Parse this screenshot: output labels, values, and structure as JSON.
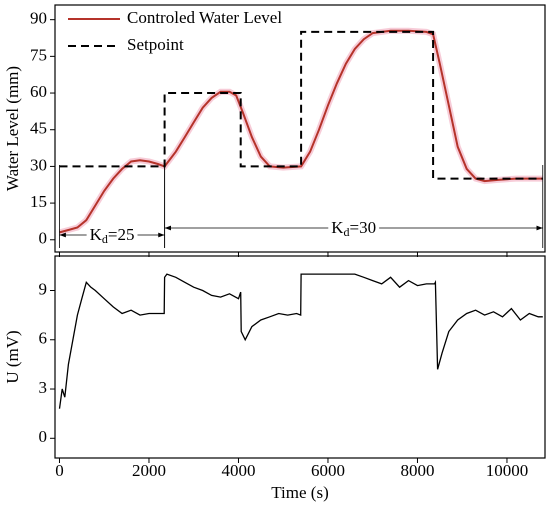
{
  "chart_data": [
    {
      "type": "line",
      "ylabel": "Water Level (mm)",
      "xlim": [
        -100,
        10850
      ],
      "ylim": [
        -5,
        96
      ],
      "xticks": [
        0,
        2000,
        4000,
        6000,
        8000,
        10000
      ],
      "yticks": [
        0,
        15,
        30,
        45,
        60,
        75,
        90
      ],
      "legend": "upper left",
      "series": [
        {
          "name": "Controled Water Level",
          "color": "#b5332a",
          "dash": false,
          "x": [
            0,
            200,
            400,
            600,
            800,
            1000,
            1200,
            1400,
            1600,
            1800,
            2000,
            2200,
            2350,
            2600,
            2800,
            3000,
            3200,
            3400,
            3600,
            3800,
            3950,
            4100,
            4300,
            4500,
            4700,
            5000,
            5400,
            5600,
            5800,
            6000,
            6200,
            6400,
            6600,
            6800,
            7000,
            7400,
            7800,
            8200,
            8350,
            8500,
            8700,
            8900,
            9100,
            9300,
            9500,
            9800,
            10200,
            10800
          ],
          "values": [
            3,
            4,
            5,
            8,
            14,
            20,
            25,
            29,
            32,
            32.5,
            32,
            31,
            30,
            36,
            42,
            48,
            54,
            58,
            60.5,
            60.5,
            59,
            52,
            42,
            34,
            30,
            29.5,
            30,
            36,
            45,
            55,
            64,
            72,
            78,
            82,
            84.5,
            85.5,
            85.5,
            85,
            84,
            72,
            55,
            38,
            29,
            25,
            24,
            24.5,
            25,
            25
          ]
        },
        {
          "name": "Setpoint",
          "color": "#000000",
          "dash": true,
          "x": [
            0,
            2350,
            2350,
            4050,
            4050,
            5400,
            5400,
            8350,
            8350,
            10800
          ],
          "values": [
            30,
            30,
            60,
            60,
            30,
            30,
            85,
            85,
            25,
            25
          ]
        }
      ],
      "annotations": [
        {
          "base": "K",
          "sub": "d",
          "tail": "=25",
          "span": [
            0,
            2350
          ]
        },
        {
          "base": "K",
          "sub": "d",
          "tail": "=30",
          "span": [
            2350,
            10800
          ]
        }
      ]
    },
    {
      "type": "line",
      "ylabel": "U (mV)",
      "xlabel": "Time (s)",
      "xlim": [
        -100,
        10850
      ],
      "ylim": [
        -1.2,
        11.1
      ],
      "xticks": [
        0,
        2000,
        4000,
        6000,
        8000,
        10000
      ],
      "yticks": [
        0,
        3,
        6,
        9
      ],
      "series": [
        {
          "color": "#000000",
          "dash": false,
          "x": [
            0,
            60,
            120,
            200,
            300,
            400,
            500,
            600,
            700,
            800,
            1000,
            1200,
            1400,
            1600,
            1800,
            2000,
            2200,
            2340,
            2350,
            2400,
            2600,
            2800,
            3000,
            3200,
            3400,
            3600,
            3800,
            4000,
            4050,
            4060,
            4150,
            4300,
            4500,
            4700,
            4900,
            5100,
            5300,
            5390,
            5400,
            5600,
            6000,
            6400,
            6600,
            6800,
            7000,
            7200,
            7400,
            7600,
            7800,
            8000,
            8200,
            8380,
            8400,
            8450,
            8550,
            8700,
            8900,
            9100,
            9300,
            9500,
            9700,
            9900,
            10100,
            10300,
            10500,
            10700,
            10800
          ],
          "values": [
            1.8,
            3,
            2.5,
            4.5,
            6,
            7.5,
            8.5,
            9.5,
            9.2,
            9,
            8.5,
            8,
            7.6,
            7.8,
            7.5,
            7.6,
            7.6,
            7.6,
            9.8,
            10,
            9.8,
            9.5,
            9.2,
            9,
            8.7,
            8.6,
            8.8,
            8.5,
            8.9,
            6.5,
            6,
            6.8,
            7.2,
            7.4,
            7.6,
            7.5,
            7.6,
            7.5,
            10,
            10,
            10,
            10,
            10,
            9.8,
            9.6,
            9.4,
            9.8,
            9.2,
            9.6,
            9.3,
            9.4,
            9.4,
            9.5,
            4.2,
            5.2,
            6.5,
            7.2,
            7.6,
            7.8,
            7.5,
            7.7,
            7.4,
            7.9,
            7.2,
            7.6,
            7.4,
            7.4
          ]
        }
      ]
    }
  ]
}
